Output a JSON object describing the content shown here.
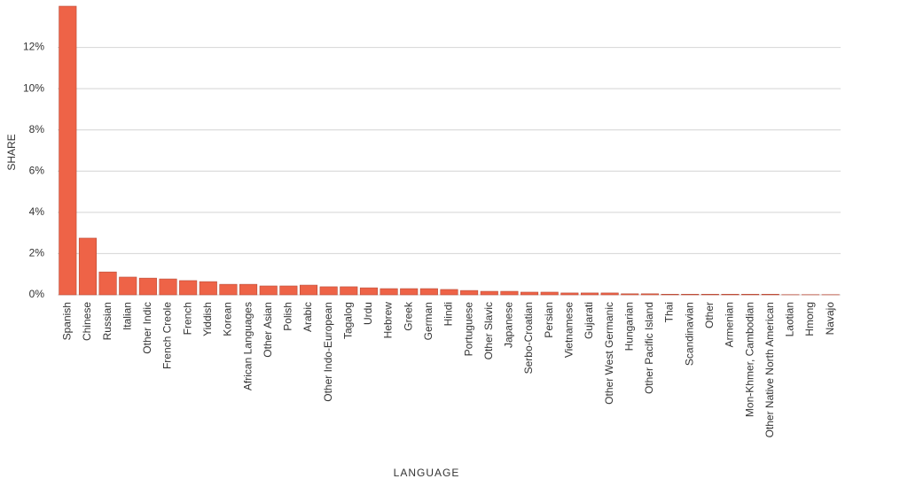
{
  "chart_data": {
    "type": "bar",
    "x_label": "LANGUAGE",
    "y_label": "SHARE",
    "categories": [
      "Spanish",
      "Chinese",
      "Russian",
      "Italian",
      "Other Indic",
      "French Creole",
      "French",
      "Yiddish",
      "Korean",
      "African Languages",
      "Other Asian",
      "Polish",
      "Arabic",
      "Other Indo-European",
      "Tagalog",
      "Urdu",
      "Hebrew",
      "Greek",
      "German",
      "Hindi",
      "Portuguese",
      "Other Slavic",
      "Japanese",
      "Serbo-Croatian",
      "Persian",
      "Vietnamese",
      "Gujarati",
      "Other West Germanic",
      "Hungarian",
      "Other Pacific Island",
      "Thai",
      "Scandinavian",
      "Other",
      "Armenian",
      "Mon-Khmer, Cambodian",
      "Other Native North American",
      "Laotian",
      "Hmong",
      "Navajo"
    ],
    "values": [
      14,
      2.75,
      1.11,
      0.86,
      0.81,
      0.77,
      0.69,
      0.64,
      0.51,
      0.51,
      0.43,
      0.43,
      0.47,
      0.39,
      0.39,
      0.34,
      0.3,
      0.3,
      0.3,
      0.26,
      0.21,
      0.17,
      0.17,
      0.13,
      0.13,
      0.09,
      0.09,
      0.09,
      0.05,
      0.05,
      0.03,
      0.03,
      0.03,
      0.03,
      0.03,
      0.03,
      0.01,
      0.01,
      0.01
    ],
    "color": "#ee6347",
    "ylim": [
      0,
      14
    ],
    "yticks": [
      {
        "value": 0,
        "label": "0%"
      },
      {
        "value": 2,
        "label": "2%"
      },
      {
        "value": 4,
        "label": "4%"
      },
      {
        "value": 6,
        "label": "6%"
      },
      {
        "value": 8,
        "label": "8%"
      },
      {
        "value": 10,
        "label": "10%"
      },
      {
        "value": 12,
        "label": "12%"
      }
    ],
    "grid": true
  }
}
